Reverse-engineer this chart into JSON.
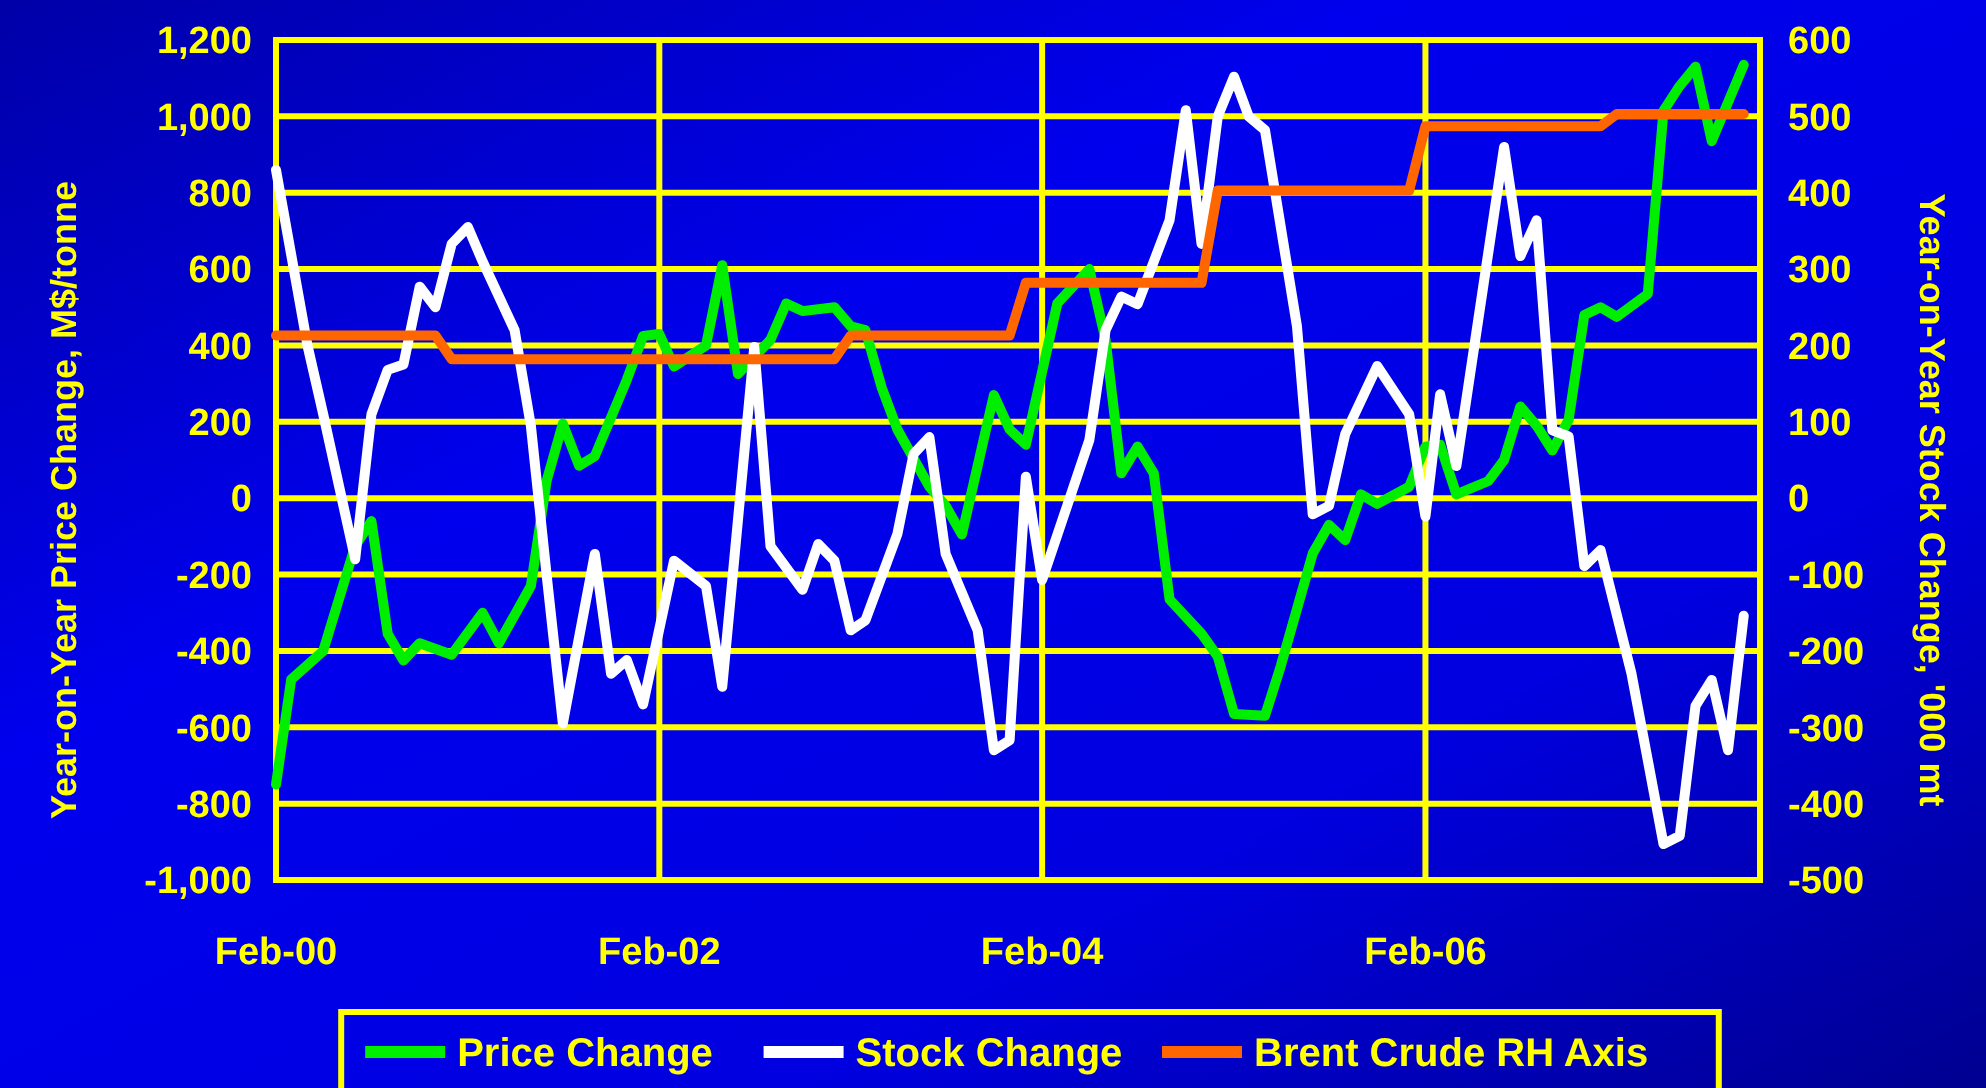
{
  "chart_data": {
    "type": "line",
    "ylabel": "Year-on-Year Price Change, M$/tonne",
    "y2label": "Year-on-Year Stock Change, '000 mt",
    "xlim": [
      "2000-02",
      "2007-11"
    ],
    "xticks": [
      {
        "value": "2000-02",
        "label": "Feb-00"
      },
      {
        "value": "2002-02",
        "label": "Feb-02"
      },
      {
        "value": "2004-02",
        "label": "Feb-04"
      },
      {
        "value": "2006-02",
        "label": "Feb-06"
      }
    ],
    "ylim": [
      -1000,
      1200
    ],
    "yticks": [
      {
        "value": -1000,
        "label": "-1,000"
      },
      -800,
      -600,
      -400,
      -200,
      0,
      200,
      400,
      600,
      800,
      {
        "value": 1000,
        "label": "1,000"
      },
      {
        "value": 1200,
        "label": "1,200"
      }
    ],
    "y2lim": [
      -500,
      600
    ],
    "y2ticks": [
      -500,
      -400,
      -300,
      -200,
      -100,
      0,
      100,
      200,
      300,
      400,
      500,
      600
    ],
    "grid": true,
    "legend": "bottom",
    "series": [
      {
        "name": "Price Change",
        "color": "#00ee00",
        "x": [
          "2000-02",
          "2000-03",
          "2000-05",
          "2000-07",
          "2000-08",
          "2000-09",
          "2000-10",
          "2000-11",
          "2001-01",
          "2001-03",
          "2001-04",
          "2001-06",
          "2001-07",
          "2001-08",
          "2001-09",
          "2001-10",
          "2001-12",
          "2002-01",
          "2002-02",
          "2002-03",
          "2002-05",
          "2002-06",
          "2002-07",
          "2002-09",
          "2002-10",
          "2002-11",
          "2003-01",
          "2003-02",
          "2003-03",
          "2003-04",
          "2003-05",
          "2003-07",
          "2003-08",
          "2003-09",
          "2003-11",
          "2003-12",
          "2004-01",
          "2004-03",
          "2004-05",
          "2004-06",
          "2004-07",
          "2004-08",
          "2004-09",
          "2004-10",
          "2004-12",
          "2005-01",
          "2005-02",
          "2005-04",
          "2005-05",
          "2005-07",
          "2005-08",
          "2005-09",
          "2005-10",
          "2005-11",
          "2006-01",
          "2006-02",
          "2006-03",
          "2006-04",
          "2006-06",
          "2006-07",
          "2006-08",
          "2006-09",
          "2006-10",
          "2006-11",
          "2006-12",
          "2007-01",
          "2007-02",
          "2007-04",
          "2007-05",
          "2007-06",
          "2007-07",
          "2007-08",
          "2007-10"
        ],
        "values": [
          -750,
          -475,
          -400,
          -125,
          -60,
          -355,
          -425,
          -380,
          -410,
          -300,
          -380,
          -230,
          45,
          195,
          85,
          110,
          310,
          425,
          430,
          345,
          400,
          610,
          325,
          415,
          510,
          490,
          500,
          450,
          440,
          290,
          180,
          30,
          -20,
          -95,
          270,
          180,
          140,
          510,
          600,
          415,
          65,
          135,
          65,
          -265,
          -355,
          -415,
          -565,
          -570,
          -440,
          -145,
          -70,
          -110,
          10,
          -15,
          30,
          135,
          140,
          10,
          45,
          100,
          240,
          190,
          125,
          205,
          480,
          500,
          475,
          535,
          1015,
          1080,
          1130,
          935,
          1135
        ]
      },
      {
        "name": "Stock Change",
        "color": "#ffffff",
        "axis": "y2",
        "x": [
          "2000-02",
          "2000-04",
          "2000-05",
          "2000-07",
          "2000-08",
          "2000-09",
          "2000-10",
          "2000-11",
          "2000-12",
          "2001-01",
          "2001-02",
          "2001-03",
          "2001-05",
          "2001-06",
          "2001-07",
          "2001-08",
          "2001-10",
          "2001-11",
          "2001-12",
          "2002-01",
          "2002-03",
          "2002-05",
          "2002-06",
          "2002-08",
          "2002-09",
          "2002-11",
          "2002-12",
          "2003-01",
          "2003-02",
          "2003-03",
          "2003-05",
          "2003-06",
          "2003-07",
          "2003-08",
          "2003-10",
          "2003-11",
          "2003-12",
          "2004-01",
          "2004-02",
          "2004-05",
          "2004-06",
          "2004-07",
          "2004-08",
          "2004-10",
          "2004-11",
          "2004-12",
          "2005-01",
          "2005-02",
          "2005-03",
          "2005-04",
          "2005-06",
          "2005-07",
          "2005-08",
          "2005-09",
          "2005-11",
          "2006-01",
          "2006-02",
          "2006-03",
          "2006-04",
          "2006-07",
          "2006-08",
          "2006-09",
          "2006-10",
          "2006-11",
          "2006-12",
          "2007-01",
          "2007-03",
          "2007-04",
          "2007-05",
          "2007-06",
          "2007-07",
          "2007-08",
          "2007-09",
          "2007-10"
        ],
        "values": [
          430,
          200,
          110,
          -80,
          110,
          168,
          175,
          277,
          250,
          333,
          355,
          310,
          220,
          95,
          -100,
          -295,
          -73,
          -230,
          -212,
          -270,
          -82,
          -115,
          -247,
          198,
          -63,
          -120,
          -60,
          -82,
          -173,
          -160,
          -47,
          58,
          80,
          -73,
          -173,
          -330,
          -317,
          28,
          -107,
          76,
          220,
          264,
          254,
          364,
          508,
          333,
          500,
          552,
          500,
          482,
          225,
          -21,
          -10,
          84,
          173,
          110,
          -24,
          136,
          42,
          460,
          317,
          364,
          89,
          81,
          -89,
          -68,
          -230,
          -343,
          -453,
          -442,
          -272,
          -238,
          -330,
          -154
        ]
      },
      {
        "name": "Brent Crude RH Axis",
        "color": "#ff6600",
        "axis": "y2",
        "x": [
          "2000-02",
          "2000-12",
          "2001-01",
          "2003-01",
          "2003-02",
          "2003-12",
          "2004-01",
          "2004-12",
          "2005-01",
          "2006-01",
          "2006-02",
          "2007-01",
          "2007-02",
          "2007-10"
        ],
        "values": [
          213,
          213,
          182,
          182,
          213,
          213,
          282,
          282,
          403,
          403,
          487,
          487,
          503,
          503
        ]
      }
    ]
  }
}
